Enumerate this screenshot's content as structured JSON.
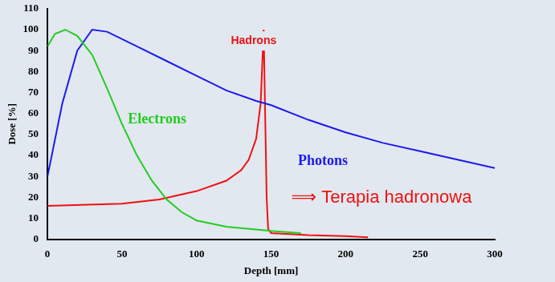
{
  "chart_data": {
    "type": "line",
    "x_label": "Depth [mm]",
    "y_label": "Dose [%]",
    "xlim": [
      0,
      300
    ],
    "xticks": [
      0,
      50,
      100,
      150,
      200,
      250,
      300
    ],
    "ylim": [
      0,
      110
    ],
    "yticks": [
      0,
      10,
      20,
      30,
      40,
      50,
      60,
      70,
      80,
      90,
      100,
      110
    ],
    "grid": false,
    "annotations": [
      "⟹ Terapia hadronowa"
    ],
    "series": [
      {
        "name": "Electrons",
        "color": "#22cc22",
        "x": [
          0,
          5,
          12,
          20,
          30,
          40,
          50,
          60,
          70,
          80,
          90,
          100,
          120,
          150,
          170
        ],
        "values": [
          92,
          98,
          100,
          97,
          88,
          72,
          55,
          40,
          28,
          19,
          13,
          9,
          6,
          4,
          3
        ]
      },
      {
        "name": "Photons",
        "color": "#1a1aee",
        "x": [
          0,
          10,
          20,
          30,
          40,
          60,
          80,
          100,
          120,
          140,
          150,
          175,
          200,
          225,
          250,
          275,
          300
        ],
        "values": [
          30,
          65,
          90,
          100,
          99,
          92,
          85,
          78,
          71,
          66,
          64,
          57,
          51,
          46,
          42,
          38,
          34
        ]
      },
      {
        "name": "Hadrons",
        "color": "#ee1111",
        "x": [
          0,
          50,
          75,
          100,
          120,
          130,
          135,
          140,
          143,
          145,
          146,
          147,
          148,
          150,
          175,
          200,
          215
        ],
        "values": [
          16,
          17,
          19,
          23,
          28,
          33,
          38,
          48,
          65,
          100,
          60,
          20,
          5,
          3,
          2,
          1.5,
          1
        ]
      }
    ]
  }
}
